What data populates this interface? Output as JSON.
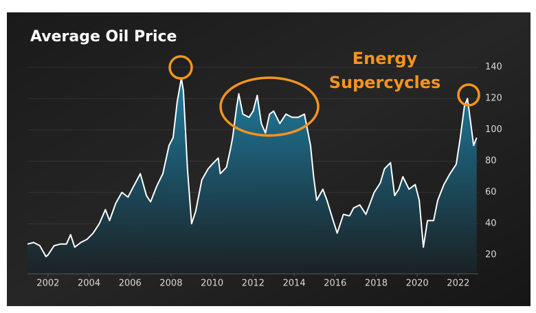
{
  "chart_data": {
    "type": "area",
    "title": "Average Oil Price",
    "annotation": [
      "Energy",
      "Supercycles"
    ],
    "line_color": "#ffffff",
    "fill_color": "#1f7fa3",
    "annotation_color": "#f7941d",
    "grid": true,
    "x": [
      2001.0,
      2001.3,
      2001.6,
      2001.9,
      2002.0,
      2002.3,
      2002.6,
      2002.9,
      2003.1,
      2003.3,
      2003.6,
      2003.9,
      2004.2,
      2004.5,
      2004.8,
      2005.0,
      2005.3,
      2005.6,
      2005.9,
      2006.1,
      2006.5,
      2006.8,
      2007.0,
      2007.3,
      2007.6,
      2007.9,
      2008.1,
      2008.3,
      2008.5,
      2008.6,
      2008.8,
      2009.0,
      2009.2,
      2009.5,
      2009.8,
      2010.0,
      2010.3,
      2010.4,
      2010.7,
      2010.9,
      2011.0,
      2011.2,
      2011.3,
      2011.5,
      2011.8,
      2012.0,
      2012.2,
      2012.4,
      2012.6,
      2012.8,
      2013.0,
      2013.3,
      2013.6,
      2013.9,
      2014.2,
      2014.5,
      2014.8,
      2014.95,
      2015.1,
      2015.4,
      2015.6,
      2015.9,
      2016.1,
      2016.4,
      2016.7,
      2016.9,
      2017.2,
      2017.5,
      2017.9,
      2018.2,
      2018.4,
      2018.7,
      2018.9,
      2019.1,
      2019.3,
      2019.6,
      2019.9,
      2020.1,
      2020.3,
      2020.5,
      2020.8,
      2021.0,
      2021.3,
      2021.6,
      2021.9,
      2022.1,
      2022.3,
      2022.45,
      2022.6,
      2022.75,
      2022.9
    ],
    "values": [
      27,
      28,
      26,
      19,
      20,
      26,
      27,
      27,
      33,
      25,
      28,
      30,
      34,
      40,
      49,
      42,
      53,
      60,
      57,
      62,
      72,
      58,
      54,
      64,
      72,
      90,
      95,
      118,
      133,
      125,
      75,
      40,
      48,
      68,
      75,
      78,
      82,
      72,
      76,
      88,
      95,
      115,
      123,
      110,
      108,
      112,
      122,
      104,
      98,
      110,
      112,
      104,
      110,
      108,
      108,
      110,
      90,
      70,
      55,
      62,
      55,
      42,
      34,
      46,
      45,
      50,
      52,
      46,
      60,
      66,
      75,
      79,
      58,
      62,
      70,
      62,
      65,
      55,
      25,
      42,
      42,
      55,
      65,
      72,
      78,
      95,
      115,
      120,
      105,
      90,
      95
    ],
    "xlim": [
      2001,
      2023
    ],
    "xticks": [
      2002,
      2004,
      2006,
      2008,
      2010,
      2012,
      2014,
      2016,
      2018,
      2020,
      2022
    ],
    "ylim": [
      8,
      152
    ],
    "yticks": [
      20,
      40,
      60,
      80,
      100,
      120,
      140
    ]
  }
}
